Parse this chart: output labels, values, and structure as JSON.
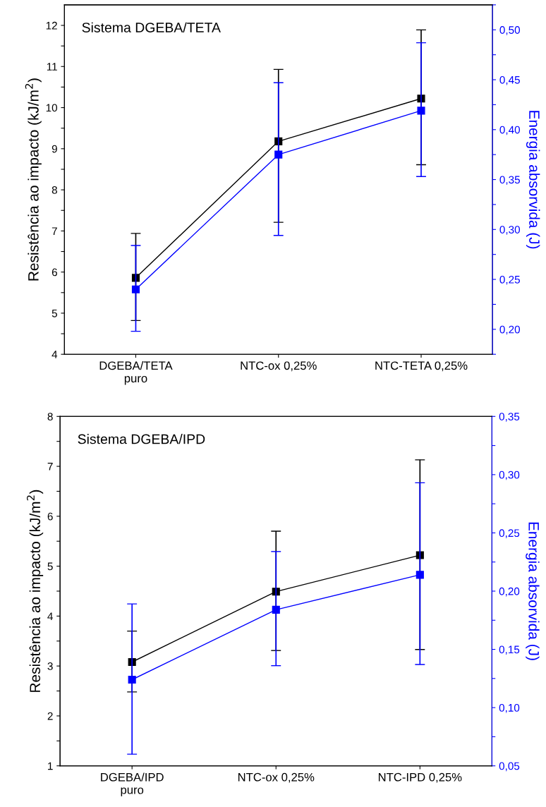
{
  "chart_data": [
    {
      "type": "line",
      "title": "Sistema DGEBA/TETA",
      "categories": [
        "DGEBA/TETA\npuro",
        "NTC-ox 0,25%",
        "NTC-TETA 0,25%"
      ],
      "series": [
        {
          "color": "#000000",
          "axis": "y",
          "values": [
            5.86,
            9.18,
            10.22
          ],
          "errors": [
            [
              4.82,
              6.94
            ],
            [
              7.21,
              10.93
            ],
            [
              8.61,
              11.89
            ]
          ]
        },
        {
          "color": "#0000ff",
          "axis": "y2",
          "values": [
            0.24,
            0.375,
            0.419
          ],
          "errors": [
            [
              0.198,
              0.284
            ],
            [
              0.294,
              0.447
            ],
            [
              0.353,
              0.487
            ]
          ]
        }
      ],
      "ylabel": "Resistência ao impacto (kJ/m$^{2}$)",
      "y2label": "Energia absorvida (J)",
      "ylim": [
        4,
        12.5
      ],
      "yticks": [
        4,
        {
          "value": 4.5,
          "label": null
        },
        5,
        {
          "value": 5.5,
          "label": null
        },
        6,
        {
          "value": 6.5,
          "label": null
        },
        7,
        {
          "value": 7.5,
          "label": null
        },
        8,
        {
          "value": 8.5,
          "label": null
        },
        9,
        {
          "value": 9.5,
          "label": null
        },
        10,
        {
          "value": 10.5,
          "label": null
        },
        11,
        {
          "value": 11.5,
          "label": null
        },
        12
      ],
      "y2lim": [
        0.175,
        0.525
      ],
      "y2ticks": [
        {
          "value": 0.175,
          "label": null
        },
        {
          "value": 0.2,
          "label": "0,20"
        },
        {
          "value": 0.225,
          "label": null
        },
        {
          "value": 0.25,
          "label": "0,25"
        },
        {
          "value": 0.275,
          "label": null
        },
        {
          "value": 0.3,
          "label": "0,30"
        },
        {
          "value": 0.325,
          "label": null
        },
        {
          "value": 0.35,
          "label": "0,35"
        },
        {
          "value": 0.375,
          "label": null
        },
        {
          "value": 0.4,
          "label": "0,40"
        },
        {
          "value": 0.425,
          "label": null
        },
        {
          "value": 0.45,
          "label": "0,45"
        },
        {
          "value": 0.475,
          "label": null
        },
        {
          "value": 0.5,
          "label": "0,50"
        },
        {
          "value": 0.525,
          "label": null
        }
      ],
      "marker": "square",
      "line_style": "solid",
      "grid": false,
      "legend": false
    },
    {
      "type": "line",
      "title": "Sistema DGEBA/IPD",
      "categories": [
        "DGEBA/IPD\npuro",
        "NTC-ox 0,25%",
        "NTC-IPD 0,25%"
      ],
      "series": [
        {
          "color": "#000000",
          "axis": "y",
          "values": [
            3.08,
            4.49,
            5.22
          ],
          "errors": [
            [
              2.48,
              3.7
            ],
            [
              3.31,
              5.7
            ],
            [
              3.33,
              7.13
            ]
          ]
        },
        {
          "color": "#0000ff",
          "axis": "y2",
          "values": [
            0.124,
            0.184,
            0.214
          ],
          "errors": [
            [
              0.06,
              0.189
            ],
            [
              0.136,
              0.234
            ],
            [
              0.137,
              0.293
            ]
          ]
        }
      ],
      "ylabel": "Resistência ao impacto (kJ/m$^{2}$)",
      "y2label": "Energia absorvida (J)",
      "ylim": [
        1,
        8
      ],
      "yticks": [
        1,
        {
          "value": 1.5,
          "label": null
        },
        2,
        {
          "value": 2.5,
          "label": null
        },
        3,
        {
          "value": 3.5,
          "label": null
        },
        4,
        {
          "value": 4.5,
          "label": null
        },
        5,
        {
          "value": 5.5,
          "label": null
        },
        6,
        {
          "value": 6.5,
          "label": null
        },
        7,
        {
          "value": 7.5,
          "label": null
        },
        8
      ],
      "y2lim": [
        0.05,
        0.35
      ],
      "y2ticks": [
        {
          "value": 0.05,
          "label": "0,05"
        },
        {
          "value": 0.075,
          "label": null
        },
        {
          "value": 0.1,
          "label": "0,10"
        },
        {
          "value": 0.125,
          "label": null
        },
        {
          "value": 0.15,
          "label": "0,15"
        },
        {
          "value": 0.175,
          "label": null
        },
        {
          "value": 0.2,
          "label": "0,20"
        },
        {
          "value": 0.225,
          "label": null
        },
        {
          "value": 0.25,
          "label": "0,25"
        },
        {
          "value": 0.275,
          "label": null
        },
        {
          "value": 0.3,
          "label": "0,30"
        },
        {
          "value": 0.325,
          "label": null
        },
        {
          "value": 0.35,
          "label": "0,35"
        }
      ],
      "marker": "square",
      "line_style": "solid",
      "grid": false,
      "legend": false
    }
  ]
}
